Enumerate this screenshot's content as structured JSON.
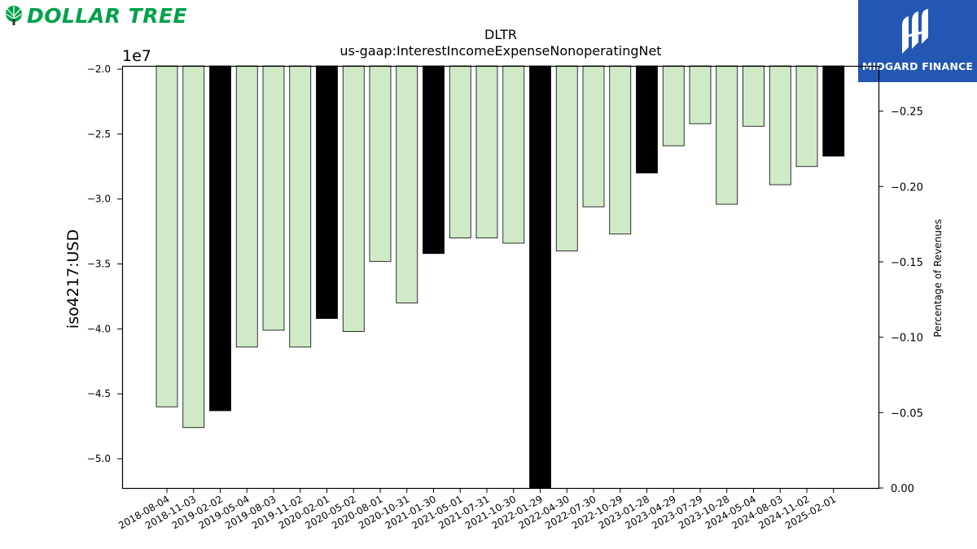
{
  "logos": {
    "left_brand": "DOLLAR TREE",
    "right_brand": "MIDGARD FINANCE"
  },
  "chart_data": {
    "type": "bar",
    "title": "DLTR",
    "subtitle": "us-gaap:InterestIncomeExpenseNonoperatingNet",
    "ylabel": "iso4217:USD",
    "y_offset_label": "1e7",
    "y2label": "Percentage of Revenues",
    "ylim": [
      -5.225,
      -1.975
    ],
    "y_scale": 10000000,
    "y2lim": [
      0.0,
      -0.28
    ],
    "yticks": [
      -2.0,
      -2.5,
      -3.0,
      -3.5,
      -4.0,
      -4.5,
      -5.0
    ],
    "ytick_labels": [
      "−2.0",
      "−2.5",
      "−3.0",
      "−3.5",
      "−4.0",
      "−4.5",
      "−5.0"
    ],
    "y2ticks": [
      -0.25,
      -0.2,
      -0.15,
      -0.1,
      -0.05,
      0.0
    ],
    "y2tick_labels": [
      "−0.25",
      "−0.20",
      "−0.15",
      "−0.10",
      "−0.05",
      "0.00"
    ],
    "colors": {
      "quarter": "#d0eac8",
      "fiscal_year_end": "#000000",
      "edge": "#000000"
    },
    "categories": [
      "2018-08-04",
      "2018-11-03",
      "2019-02-02",
      "2019-05-04",
      "2019-08-03",
      "2019-11-02",
      "2020-02-01",
      "2020-05-02",
      "2020-08-01",
      "2020-10-31",
      "2021-01-30",
      "2021-05-01",
      "2021-07-31",
      "2021-10-30",
      "2022-01-29",
      "2022-04-30",
      "2022-07-30",
      "2022-10-29",
      "2023-01-28",
      "2023-04-29",
      "2023-07-29",
      "2023-10-28",
      "2024-05-04",
      "2024-08-03",
      "2024-11-02",
      "2025-02-01"
    ],
    "values": [
      -4.6,
      -4.76,
      -4.63,
      -4.14,
      -4.01,
      -4.14,
      -3.92,
      -4.02,
      -3.48,
      -3.8,
      -3.42,
      -3.3,
      -3.3,
      -3.34,
      -5.4,
      -3.4,
      -3.06,
      -3.27,
      -2.8,
      -2.59,
      -2.42,
      -3.04,
      -2.44,
      -2.89,
      -2.75,
      -2.67
    ],
    "highlight": [
      false,
      false,
      true,
      false,
      false,
      false,
      true,
      false,
      false,
      false,
      true,
      false,
      false,
      false,
      true,
      false,
      false,
      false,
      true,
      false,
      false,
      false,
      false,
      false,
      false,
      true
    ]
  }
}
